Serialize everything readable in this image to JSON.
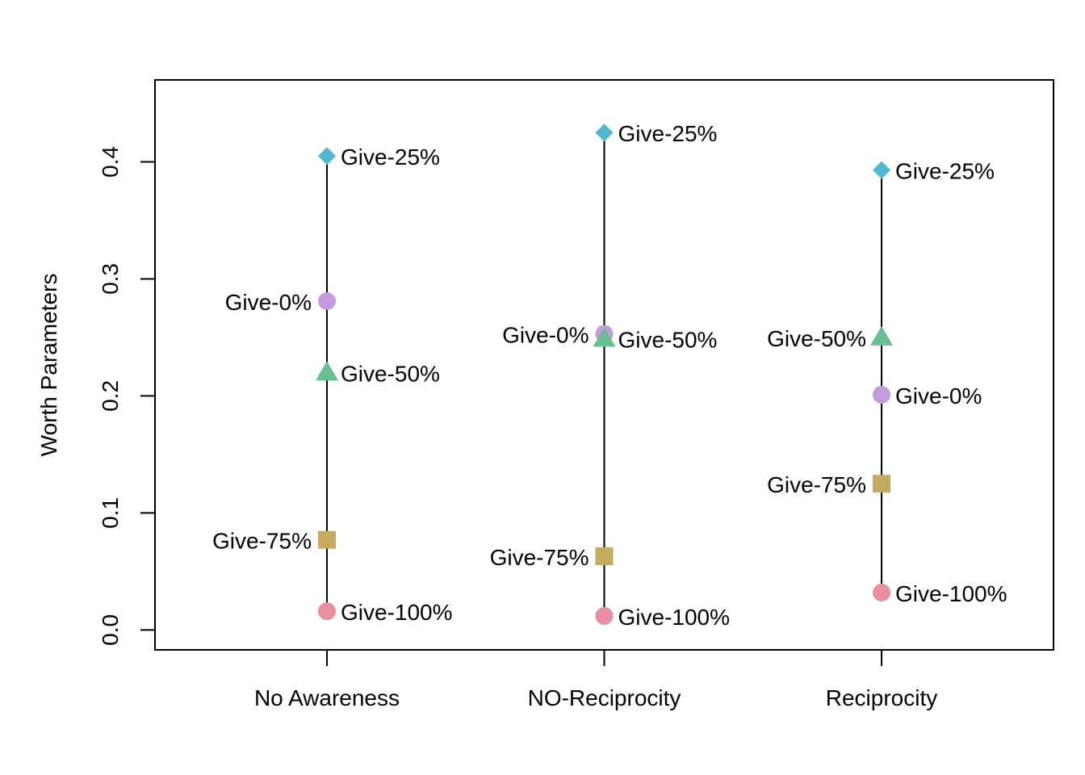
{
  "chart_data": {
    "type": "scatter",
    "title": "",
    "xlabel": "",
    "ylabel": "Worth Parameters",
    "ylim": [
      -0.017,
      0.47
    ],
    "yticks": [
      0.0,
      0.1,
      0.2,
      0.3,
      0.4
    ],
    "ytick_labels": [
      "0.0",
      "0.1",
      "0.2",
      "0.3",
      "0.4"
    ],
    "categories": [
      "No Awareness",
      "NO-Reciprocity",
      "Reciprocity"
    ],
    "grid": false,
    "legend": "none",
    "series": [
      {
        "name": "Give-0%",
        "color": "#c39bde",
        "marker": "circle",
        "values": [
          0.281,
          0.253,
          0.201
        ]
      },
      {
        "name": "Give-25%",
        "color": "#4fb7cf",
        "marker": "diamond",
        "values": [
          0.405,
          0.425,
          0.393
        ]
      },
      {
        "name": "Give-50%",
        "color": "#67c08f",
        "marker": "triangle",
        "values": [
          0.22,
          0.249,
          0.25
        ]
      },
      {
        "name": "Give-75%",
        "color": "#c6aa62",
        "marker": "square",
        "values": [
          0.077,
          0.063,
          0.125
        ]
      },
      {
        "name": "Give-100%",
        "color": "#e8909f",
        "marker": "circle",
        "values": [
          0.016,
          0.012,
          0.032
        ]
      }
    ],
    "label_sides": [
      [
        "left",
        "right",
        "right",
        "left",
        "right"
      ],
      [
        "left",
        "right",
        "right",
        "left",
        "right"
      ],
      [
        "right",
        "right",
        "left",
        "left",
        "right"
      ]
    ]
  }
}
